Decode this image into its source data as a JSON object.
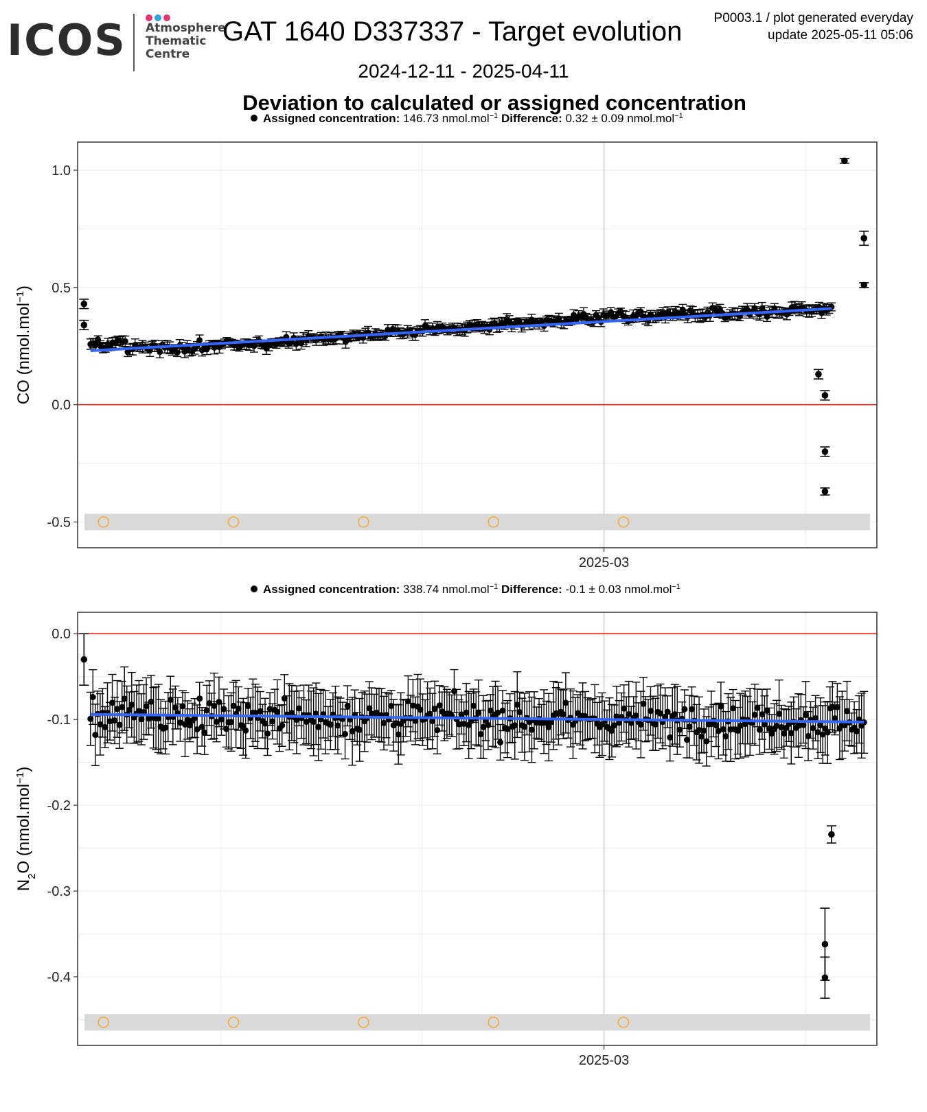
{
  "logo": {
    "wordmark": "ICOS",
    "lines": [
      "Atmosphere",
      "Thematic",
      "Centre"
    ],
    "dot_colors": [
      "#e8356f",
      "#2aa5dd",
      "#e8356f"
    ]
  },
  "title": "GAT 1640 D337337 - Target evolution",
  "meta": {
    "line1": "P0003.1 / plot generated everyday",
    "line2": "update  2025-05-11 05:06"
  },
  "date_range": "2024-12-11 - 2025-04-11",
  "subtitle": "Deviation to calculated or assigned concentration",
  "colors": {
    "points": "#000000",
    "trend": "#3366ff",
    "zero_line": "#ff0000",
    "flag_band": "#d9d9d9",
    "flag_markers": "#f5a623",
    "grid": "#ebebeb"
  },
  "chart_data": [
    {
      "type": "scatter",
      "gas": "CO",
      "legend": {
        "assigned_label": "Assigned concentration:",
        "assigned_value": "146.73 nmol.mol",
        "difference_label": "Difference:",
        "difference_value": "0.32",
        "difference_pm": "0.09",
        "unit": "nmol.mol"
      },
      "ylabel": "CO (nmol.mol",
      "ylim": [
        -0.61,
        1.12
      ],
      "yticks": [
        -0.5,
        0.0,
        0.5,
        1.0
      ],
      "ytick_labels": [
        "-0.5",
        "0.0",
        "0.5",
        "1.0"
      ],
      "xticks": [
        "2025-03"
      ],
      "x_range": [
        "2024-12-11",
        "2025-04-11"
      ],
      "reference_line": 0,
      "trend": {
        "start": 0.23,
        "end": 0.41
      },
      "bulk": {
        "start_date": "2024-12-12",
        "end_date": "2025-04-05",
        "n": 300,
        "sigma": 0.03,
        "early_offset": [
          0.05,
          -0.01,
          -0.02,
          -0.02,
          -0.03,
          -0.02,
          -0.01,
          0.0,
          0.01,
          0.02,
          0.02,
          0.03,
          0.03,
          0.04,
          0.04,
          0.03,
          0.02,
          0.01,
          0.0,
          0.0
        ]
      },
      "outliers": [
        {
          "x": "2024-12-11",
          "y": 0.43,
          "err": 0.02
        },
        {
          "x": "2024-12-11",
          "y": 0.34,
          "err": 0.02
        },
        {
          "x": "2025-04-03",
          "y": 0.13,
          "err": 0.02
        },
        {
          "x": "2025-04-04",
          "y": 0.04,
          "err": 0.02
        },
        {
          "x": "2025-04-04",
          "y": -0.2,
          "err": 0.02
        },
        {
          "x": "2025-04-04",
          "y": -0.37,
          "err": 0.015
        },
        {
          "x": "2025-04-07",
          "y": 1.04,
          "err": 0.01
        },
        {
          "x": "2025-04-10",
          "y": 0.71,
          "err": 0.03
        },
        {
          "x": "2025-04-10",
          "y": 0.51,
          "err": 0.01
        }
      ],
      "flags": {
        "y": -0.5,
        "dates": [
          "2024-12-14",
          "2025-01-03",
          "2025-01-23",
          "2025-02-12",
          "2025-03-04"
        ]
      }
    },
    {
      "type": "scatter",
      "gas": "N2O",
      "legend": {
        "assigned_label": "Assigned concentration:",
        "assigned_value": "338.74 nmol.mol",
        "difference_label": "Difference:",
        "difference_value": "-0.1",
        "difference_pm": "0.03",
        "unit": "nmol.mol"
      },
      "ylabel": "N",
      "ylabel_sub": "2",
      "ylabel_rest": "O (nmol.mol",
      "ylim": [
        -0.48,
        0.025
      ],
      "yticks": [
        -0.4,
        -0.3,
        -0.2,
        -0.1,
        0.0
      ],
      "ytick_labels": [
        "-0.4",
        "-0.3",
        "-0.2",
        "-0.1",
        "0.0"
      ],
      "xticks": [
        "2025-03"
      ],
      "x_range": [
        "2024-12-11",
        "2025-04-11"
      ],
      "reference_line": 0,
      "trend": {
        "start": -0.094,
        "end": -0.103
      },
      "bulk": {
        "start_date": "2024-12-12",
        "end_date": "2025-04-10",
        "n": 320,
        "sigma": 0.028,
        "err_min": 0.018,
        "err_max": 0.04
      },
      "outliers": [
        {
          "x": "2024-12-11",
          "y": -0.03,
          "err": 0.03
        },
        {
          "x": "2025-04-05",
          "y": -0.234,
          "err": 0.01
        },
        {
          "x": "2025-04-04",
          "y": -0.362,
          "err": 0.042
        },
        {
          "x": "2025-04-04",
          "y": -0.401,
          "err": 0.024
        }
      ],
      "flags": {
        "y": -0.453,
        "dates": [
          "2024-12-14",
          "2025-01-03",
          "2025-01-23",
          "2025-02-12",
          "2025-03-04"
        ]
      }
    }
  ]
}
